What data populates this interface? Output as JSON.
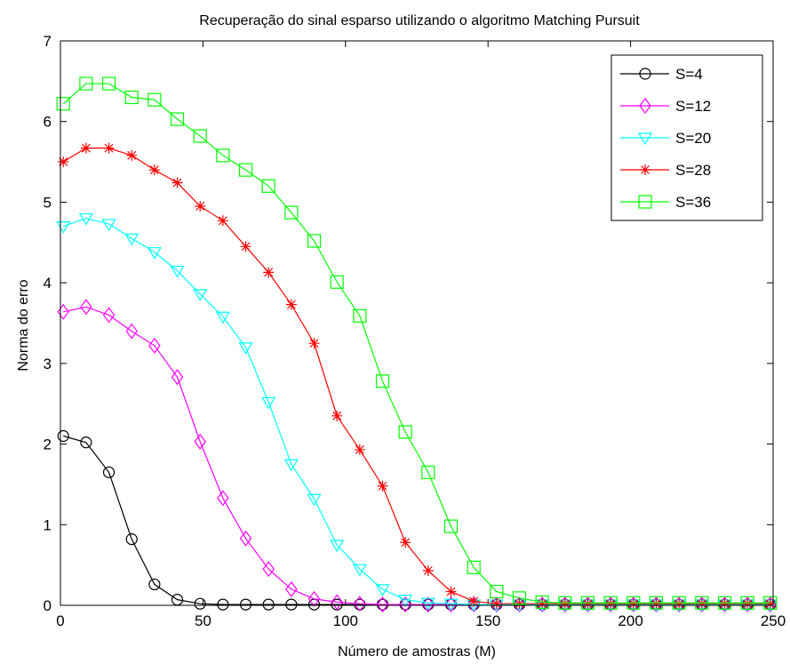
{
  "chart_data": {
    "type": "line",
    "title": "Recuperação do sinal esparso utilizando o algoritmo Matching Pursuit",
    "xlabel": "Número de amostras (M)",
    "ylabel": "Norma do erro",
    "xlim": [
      0,
      250
    ],
    "ylim": [
      0,
      7
    ],
    "x_ticks": [
      0,
      50,
      100,
      150,
      200,
      250
    ],
    "y_ticks": [
      0,
      1,
      2,
      3,
      4,
      5,
      6,
      7
    ],
    "grid": false,
    "legend_position": "top-right",
    "x": [
      1,
      9,
      17,
      25,
      33,
      41,
      49,
      57,
      65,
      73,
      81,
      89,
      97,
      105,
      113,
      121,
      129,
      137,
      145,
      153,
      161,
      169,
      177,
      185,
      193,
      201,
      209,
      217,
      225,
      233,
      241,
      249
    ],
    "series": [
      {
        "name": "S=4",
        "color": "#000000",
        "marker": "circle",
        "values": [
          2.1,
          2.02,
          1.65,
          0.82,
          0.26,
          0.07,
          0.02,
          0.01,
          0.01,
          0.01,
          0.01,
          0.01,
          0.01,
          0.01,
          0.01,
          0.01,
          0.01,
          0.01,
          0.01,
          0.01,
          0.01,
          0.01,
          0.01,
          0.01,
          0.01,
          0.01,
          0.01,
          0.01,
          0.01,
          0.01,
          0.01,
          0.01
        ]
      },
      {
        "name": "S=12",
        "color": "#ff00ff",
        "marker": "diamond",
        "values": [
          3.64,
          3.7,
          3.6,
          3.4,
          3.22,
          2.83,
          2.03,
          1.33,
          0.83,
          0.45,
          0.2,
          0.08,
          0.04,
          0.02,
          0.01,
          0.01,
          0.01,
          0.01,
          0.01,
          0.01,
          0.01,
          0.01,
          0.01,
          0.01,
          0.01,
          0.01,
          0.01,
          0.01,
          0.01,
          0.01,
          0.01,
          0.01
        ]
      },
      {
        "name": "S=20",
        "color": "#00ffff",
        "marker": "triangle-down",
        "values": [
          4.7,
          4.8,
          4.73,
          4.55,
          4.38,
          4.15,
          3.86,
          3.58,
          3.2,
          2.52,
          1.75,
          1.32,
          0.75,
          0.45,
          0.2,
          0.07,
          0.03,
          0.02,
          0.01,
          0.01,
          0.01,
          0.01,
          0.01,
          0.01,
          0.01,
          0.01,
          0.01,
          0.01,
          0.01,
          0.01,
          0.01,
          0.01
        ]
      },
      {
        "name": "S=28",
        "color": "#ff0000",
        "marker": "star",
        "values": [
          5.5,
          5.67,
          5.67,
          5.58,
          5.4,
          5.24,
          4.95,
          4.77,
          4.45,
          4.13,
          3.73,
          3.25,
          2.35,
          1.93,
          1.48,
          0.78,
          0.43,
          0.17,
          0.05,
          0.02,
          0.02,
          0.02,
          0.02,
          0.02,
          0.02,
          0.02,
          0.02,
          0.02,
          0.02,
          0.02,
          0.02,
          0.02
        ]
      },
      {
        "name": "S=36",
        "color": "#00ff00",
        "marker": "square",
        "values": [
          6.22,
          6.47,
          6.47,
          6.3,
          6.27,
          6.03,
          5.82,
          5.58,
          5.4,
          5.2,
          4.87,
          4.52,
          4.01,
          3.59,
          2.78,
          2.15,
          1.65,
          0.98,
          0.47,
          0.17,
          0.09,
          0.04,
          0.03,
          0.03,
          0.03,
          0.03,
          0.03,
          0.03,
          0.03,
          0.03,
          0.03,
          0.03
        ]
      }
    ]
  }
}
